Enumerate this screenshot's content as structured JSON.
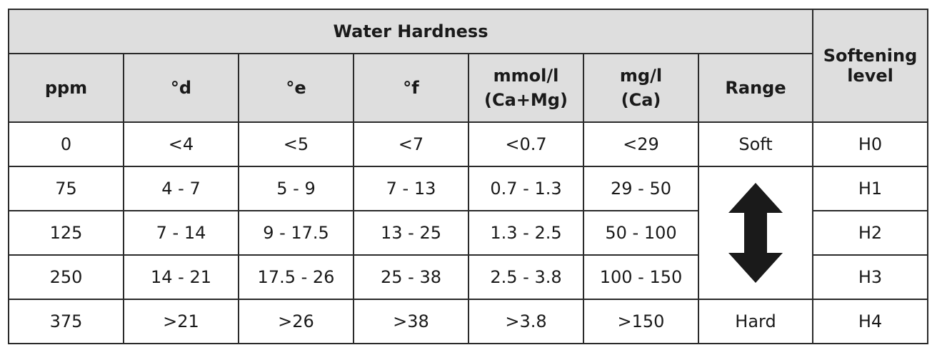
{
  "table": {
    "title": "Water Hardness",
    "softening_header": "Softening level",
    "headers": [
      "ppm",
      "°d",
      "°e",
      "°f",
      "mmol/l (Ca+Mg)",
      "mg/l (Ca)",
      "Range"
    ],
    "rows": [
      {
        "ppm": "0",
        "d": "<4",
        "e": "<5",
        "f": "<7",
        "mmol": "<0.7",
        "mg": "<29",
        "range": "Soft",
        "level": "H0"
      },
      {
        "ppm": "75",
        "d": "4 - 7",
        "e": "5 - 9",
        "f": "7 - 13",
        "mmol": "0.7 - 1.3",
        "mg": "29 - 50",
        "range": "",
        "level": "H1"
      },
      {
        "ppm": "125",
        "d": "7 - 14",
        "e": "9 - 17.5",
        "f": "13 - 25",
        "mmol": "1.3 - 2.5",
        "mg": "50 - 100",
        "range": "",
        "level": "H2"
      },
      {
        "ppm": "250",
        "d": "14 - 21",
        "e": "17.5 - 26",
        "f": "25 - 38",
        "mmol": "2.5 - 3.8",
        "mg": "100 - 150",
        "range": "",
        "level": "H3"
      },
      {
        "ppm": "375",
        "d": ">21",
        "e": ">26",
        "f": ">38",
        "mmol": ">3.8",
        "mg": ">150",
        "range": "Hard",
        "level": "H4"
      }
    ],
    "range_arrow_icon": "double-vertical-arrow-icon",
    "arrow_color": "#1a1a1a",
    "header_bg": "#dedede"
  }
}
